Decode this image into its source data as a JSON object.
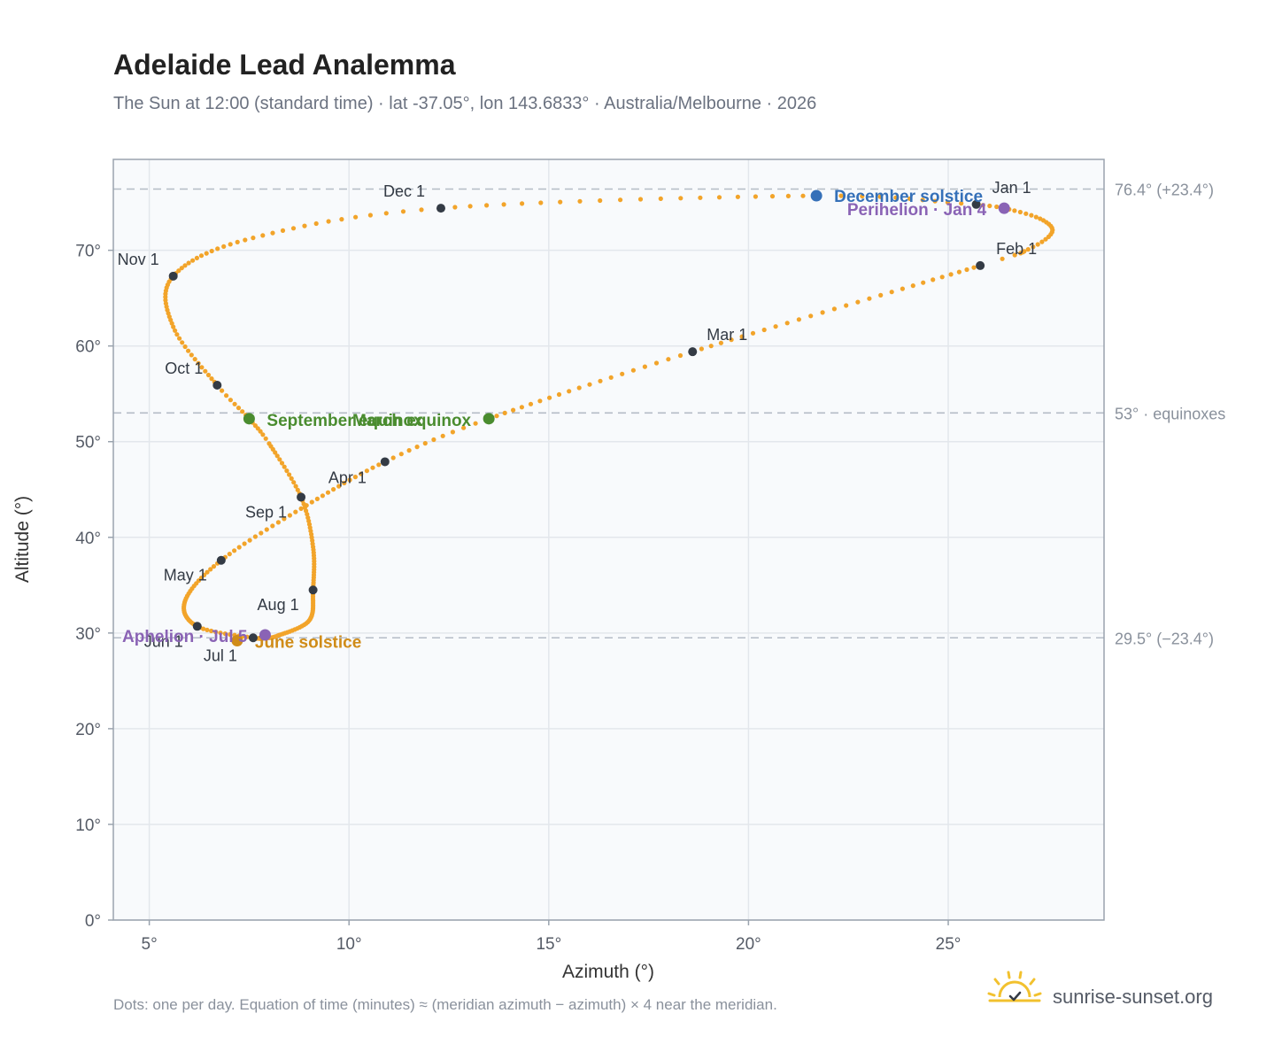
{
  "title": "Adelaide Lead Analemma",
  "subtitle": "The Sun at 12:00 (standard time) · lat -37.05°, lon 143.6833° · Australia/Melbourne · 2026",
  "footer_note": "Dots: one per day. Equation of time (minutes) ≈ (meridian azimuth − azimuth) × 4 near the meridian.",
  "brand": "sunrise-sunset.org",
  "colors": {
    "path": "#f2a42a",
    "month_marker": "#343b45",
    "equinox": "#4a8c2f",
    "solstice_december": "#3570b8",
    "solstice_june": "#d08c18",
    "apsis": "#8a63b5",
    "plot_bg": "#f8fafc",
    "grid": "#e3e7ec",
    "reference_line": "#b4bcc6",
    "logo": "#f2c12e"
  },
  "chart_data": {
    "type": "scatter",
    "title": "Adelaide Lead Analemma",
    "xlabel": "Azimuth (°)",
    "ylabel": "Altitude (°)",
    "xlim": [
      4.1,
      28.9
    ],
    "ylim": [
      0,
      79.5
    ],
    "x_ticks": [
      5,
      10,
      15,
      20,
      25
    ],
    "y_ticks": [
      0,
      10,
      20,
      30,
      40,
      50,
      60,
      70
    ],
    "x_tick_labels": [
      "5°",
      "10°",
      "15°",
      "20°",
      "25°"
    ],
    "y_tick_labels": [
      "0°",
      "10°",
      "20°",
      "30°",
      "40°",
      "50°",
      "60°",
      "70°"
    ],
    "grid": true,
    "reference_lines": [
      {
        "altitude": 76.4,
        "label": "76.4° (+23.4°)"
      },
      {
        "altitude": 53.0,
        "label": "53° · equinoxes"
      },
      {
        "altitude": 29.5,
        "label": "29.5° (−23.4°)"
      }
    ],
    "path_knots": [
      {
        "day": 0,
        "az": 25.7,
        "alt": 74.8
      },
      {
        "day": 4,
        "az": 26.4,
        "alt": 74.4
      },
      {
        "day": 11,
        "az": 27.3,
        "alt": 73.3
      },
      {
        "day": 18,
        "az": 27.6,
        "alt": 71.9
      },
      {
        "day": 25,
        "az": 27.0,
        "alt": 70.1
      },
      {
        "day": 31,
        "az": 25.8,
        "alt": 68.4
      },
      {
        "day": 59,
        "az": 18.6,
        "alt": 59.4
      },
      {
        "day": 79,
        "az": 13.5,
        "alt": 52.4
      },
      {
        "day": 90,
        "az": 10.9,
        "alt": 47.9
      },
      {
        "day": 105,
        "az": 8.8,
        "alt": 43.0
      },
      {
        "day": 120,
        "az": 6.8,
        "alt": 37.6
      },
      {
        "day": 135,
        "az": 5.9,
        "alt": 33.4
      },
      {
        "day": 151,
        "az": 6.2,
        "alt": 30.7
      },
      {
        "day": 165,
        "az": 7.6,
        "alt": 29.5
      },
      {
        "day": 172,
        "az": 7.9,
        "alt": 29.5
      },
      {
        "day": 181,
        "az": 8.2,
        "alt": 29.7
      },
      {
        "day": 196,
        "az": 9.0,
        "alt": 31.3
      },
      {
        "day": 212,
        "az": 9.1,
        "alt": 34.5
      },
      {
        "day": 228,
        "az": 9.1,
        "alt": 39.0
      },
      {
        "day": 243,
        "az": 8.8,
        "alt": 44.2
      },
      {
        "day": 258,
        "az": 8.0,
        "alt": 49.8
      },
      {
        "day": 265,
        "az": 7.5,
        "alt": 52.4
      },
      {
        "day": 273,
        "az": 6.7,
        "alt": 55.9
      },
      {
        "day": 288,
        "az": 5.6,
        "alt": 62.0
      },
      {
        "day": 304,
        "az": 5.6,
        "alt": 67.3
      },
      {
        "day": 320,
        "az": 7.6,
        "alt": 71.3
      },
      {
        "day": 334,
        "az": 12.3,
        "alt": 74.4
      },
      {
        "day": 355,
        "az": 21.7,
        "alt": 75.7
      },
      {
        "day": 365,
        "az": 25.7,
        "alt": 74.8
      }
    ],
    "month_markers": [
      {
        "label": "Jan 1",
        "az": 25.7,
        "alt": 74.8,
        "label_dx": 18,
        "label_dy": -13,
        "anchor": "start"
      },
      {
        "label": "Feb 1",
        "az": 25.8,
        "alt": 68.4,
        "label_dx": 18,
        "label_dy": -13,
        "anchor": "start"
      },
      {
        "label": "Mar 1",
        "az": 18.6,
        "alt": 59.4,
        "label_dx": 16,
        "label_dy": -13,
        "anchor": "start"
      },
      {
        "label": "Apr 1",
        "az": 10.9,
        "alt": 47.9,
        "label_dx": -64,
        "label_dy": 24,
        "anchor": "start"
      },
      {
        "label": "May 1",
        "az": 6.8,
        "alt": 37.6,
        "label_dx": -16,
        "label_dy": 23,
        "anchor": "end"
      },
      {
        "label": "Jun 1",
        "az": 6.2,
        "alt": 30.7,
        "label_dx": -16,
        "label_dy": 23,
        "anchor": "end"
      },
      {
        "label": "Jul 1",
        "az": 7.6,
        "alt": 29.5,
        "label_dx": -18,
        "label_dy": 26,
        "anchor": "end"
      },
      {
        "label": "Aug 1",
        "az": 9.1,
        "alt": 34.5,
        "label_dx": -16,
        "label_dy": 23,
        "anchor": "end"
      },
      {
        "label": "Sep 1",
        "az": 8.8,
        "alt": 44.2,
        "label_dx": -16,
        "label_dy": 23,
        "anchor": "end"
      },
      {
        "label": "Oct 1",
        "az": 6.7,
        "alt": 55.9,
        "label_dx": -16,
        "label_dy": -13,
        "anchor": "end"
      },
      {
        "label": "Nov 1",
        "az": 5.6,
        "alt": 67.3,
        "label_dx": -16,
        "label_dy": -13,
        "anchor": "end"
      },
      {
        "label": "Dec 1",
        "az": 12.3,
        "alt": 74.4,
        "label_dx": -18,
        "label_dy": -13,
        "anchor": "end"
      }
    ],
    "events": [
      {
        "label": "December solstice",
        "az": 21.7,
        "alt": 75.7,
        "color": "#3570b8",
        "label_dx": 20,
        "label_dy": 7,
        "anchor": "start"
      },
      {
        "label": "Perihelion · Jan 4",
        "az": 26.4,
        "alt": 74.4,
        "color": "#8a63b5",
        "label_dx": -20,
        "label_dy": 8,
        "anchor": "end"
      },
      {
        "label": "March equinox",
        "az": 13.5,
        "alt": 52.4,
        "color": "#4a8c2f",
        "label_dx": -20,
        "label_dy": 8,
        "anchor": "end"
      },
      {
        "label": "September equinox",
        "az": 7.5,
        "alt": 52.4,
        "color": "#4a8c2f",
        "label_dx": 20,
        "label_dy": 8,
        "anchor": "start"
      },
      {
        "label": "June solstice",
        "az": 7.2,
        "alt": 29.2,
        "color": "#d08c18",
        "label_dx": 20,
        "label_dy": 8,
        "anchor": "start"
      },
      {
        "label": "Aphelion · Jul 5",
        "az": 7.9,
        "alt": 29.8,
        "color": "#8a63b5",
        "label_dx": -20,
        "label_dy": 8,
        "anchor": "end"
      }
    ]
  }
}
